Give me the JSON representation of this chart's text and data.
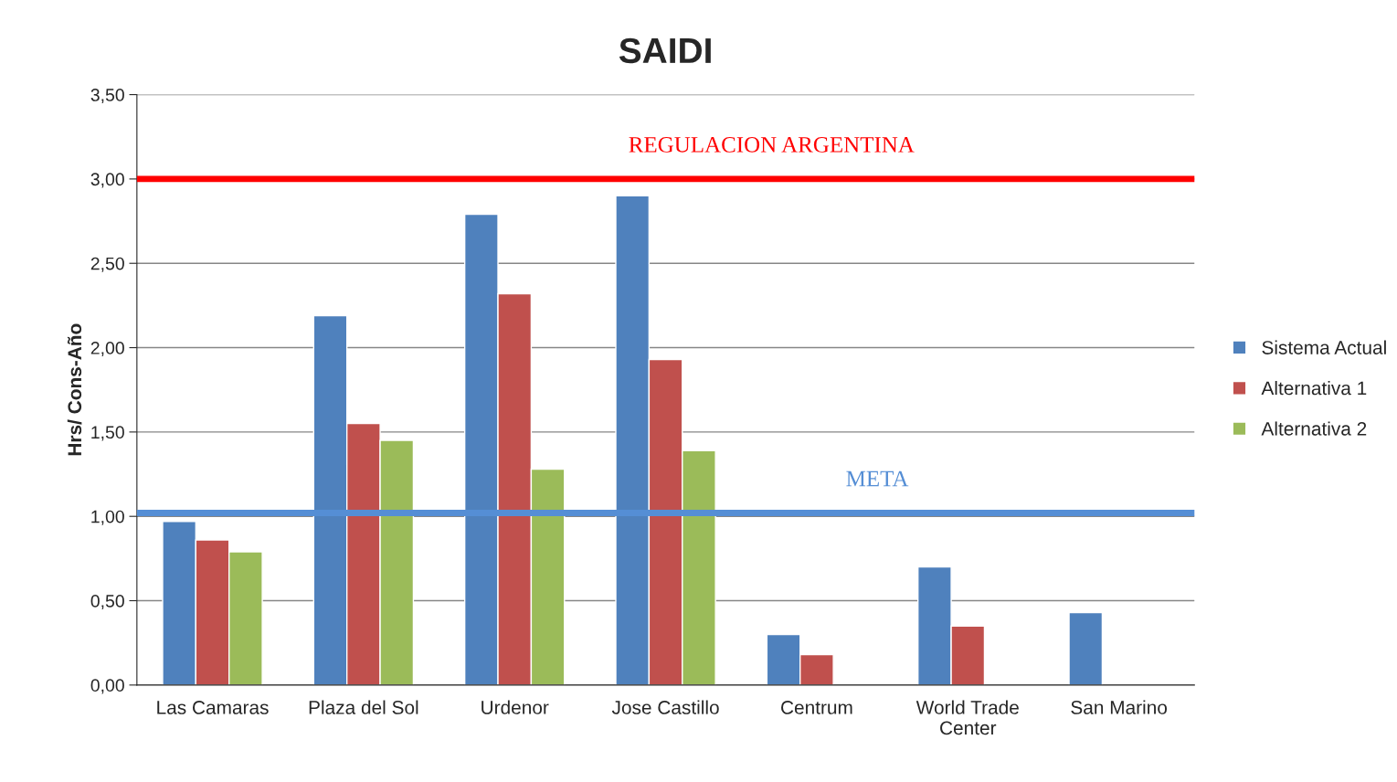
{
  "chart_data": {
    "type": "bar",
    "title": "SAIDI",
    "ylabel": "Hrs/ Cons-Año",
    "categories": [
      "Las Camaras",
      "Plaza del Sol",
      "Urdenor",
      "Jose Castillo",
      "Centrum",
      "World Trade\nCenter",
      "San Marino"
    ],
    "series": [
      {
        "name": "Sistema Actual",
        "color": "#4f81bd",
        "values": [
          0.97,
          2.19,
          2.79,
          2.9,
          0.3,
          0.7,
          0.43
        ]
      },
      {
        "name": "Alternativa 1",
        "color": "#c0504d",
        "values": [
          0.86,
          1.55,
          2.32,
          1.93,
          0.18,
          0.35,
          null
        ]
      },
      {
        "name": "Alternativa 2",
        "color": "#9bbb59",
        "values": [
          0.79,
          1.45,
          1.28,
          1.39,
          null,
          null,
          null
        ]
      }
    ],
    "ylim": [
      0,
      3.5
    ],
    "yticks": [
      {
        "value": 0,
        "label": "0,00"
      },
      {
        "value": 0.5,
        "label": "0,50"
      },
      {
        "value": 1,
        "label": "1,00"
      },
      {
        "value": 1.5,
        "label": "1,50"
      },
      {
        "value": 2,
        "label": "2,00"
      },
      {
        "value": 2.5,
        "label": "2,50"
      },
      {
        "value": 3,
        "label": "3,00"
      },
      {
        "value": 3.5,
        "label": "3,50"
      }
    ],
    "ref_lines": [
      {
        "axis": "y",
        "value": 3.0,
        "label": "REGULACION ARGENTINA",
        "color": "#ff0000"
      },
      {
        "axis": "y",
        "value": 1.02,
        "label": "META",
        "color": "#558ed5"
      }
    ],
    "grid": "y",
    "legend": "right"
  }
}
